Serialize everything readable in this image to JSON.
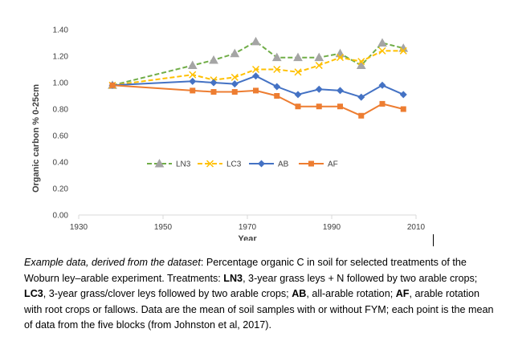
{
  "chart_data": {
    "type": "line",
    "title": "",
    "xlabel": "Year",
    "ylabel": "Organic carbon % 0-25cm",
    "xlim": [
      1930,
      2010
    ],
    "ylim": [
      0,
      1.4
    ],
    "x_ticks": [
      "1930",
      "1950",
      "1970",
      "1990",
      "2010"
    ],
    "y_ticks": [
      "0.00",
      "0.20",
      "0.40",
      "0.60",
      "0.80",
      "1.00",
      "1.20",
      "1.40"
    ],
    "grid": false,
    "legend_position": "center",
    "series": [
      {
        "name": "LN3",
        "color": "#70AD47",
        "line_style": "dashed",
        "marker": "triangle",
        "x": [
          1938,
          1957,
          1962,
          1967,
          1972,
          1977,
          1982,
          1987,
          1992,
          1997,
          2002,
          2007
        ],
        "y": [
          0.98,
          1.13,
          1.17,
          1.22,
          1.31,
          1.19,
          1.19,
          1.19,
          1.22,
          1.13,
          1.3,
          1.26
        ]
      },
      {
        "name": "LC3",
        "color": "#FFC000",
        "line_style": "dashed",
        "marker": "x",
        "x": [
          1938,
          1957,
          1962,
          1967,
          1972,
          1977,
          1982,
          1987,
          1992,
          1997,
          2002,
          2007
        ],
        "y": [
          0.98,
          1.06,
          1.02,
          1.04,
          1.1,
          1.1,
          1.08,
          1.13,
          1.19,
          1.16,
          1.24,
          1.24
        ]
      },
      {
        "name": "AB",
        "color": "#4472C4",
        "line_style": "solid",
        "marker": "diamond",
        "x": [
          1938,
          1957,
          1962,
          1967,
          1972,
          1977,
          1982,
          1987,
          1992,
          1997,
          2002,
          2007
        ],
        "y": [
          0.98,
          1.01,
          1.0,
          0.99,
          1.05,
          0.97,
          0.91,
          0.95,
          0.94,
          0.89,
          0.98,
          0.91
        ]
      },
      {
        "name": "AF",
        "color": "#ED7D31",
        "line_style": "solid",
        "marker": "square",
        "x": [
          1938,
          1957,
          1962,
          1967,
          1972,
          1977,
          1982,
          1987,
          1992,
          1997,
          2002,
          2007
        ],
        "y": [
          0.98,
          0.94,
          0.93,
          0.93,
          0.94,
          0.9,
          0.82,
          0.82,
          0.82,
          0.75,
          0.84,
          0.8
        ]
      }
    ]
  },
  "caption": {
    "intro_italic": "Example data, derived from the dataset",
    "intro_rest": ": Percentage organic C in soil for selected treatments of the Woburn ley–arable experiment. Treatments: ",
    "ln3_label": "LN3",
    "ln3_desc": ", 3-year grass leys + N followed by two arable crops; ",
    "lc3_label": "LC3",
    "lc3_desc": ", 3-year grass/clover leys followed by two arable crops; ",
    "ab_label": "AB",
    "ab_desc": ", all-arable rotation; ",
    "af_label": "AF",
    "af_desc": ", arable rotation with root crops or fallows. Data are the mean of soil samples with or without FYM; each point is the mean of data from the five blocks (from Johnston et al, 2017)."
  }
}
